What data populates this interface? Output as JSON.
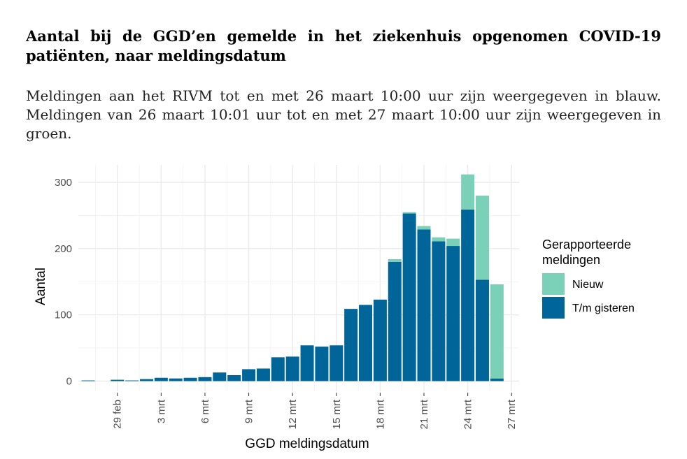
{
  "header": {
    "title": "Aantal bij de GGD’en gemelde in het ziekenhuis opgenomen COVID-19 patiënten, naar meldingsdatum",
    "subtitle": "Meldingen aan het RIVM tot en met 26 maart 10:00 uur zijn weergegeven in blauw. Meldingen van 26 maart 10:01 uur tot en met 27 maart 10:00 uur zijn weergegeven in groen."
  },
  "chart_data": {
    "type": "bar",
    "stacked": true,
    "xlabel": "GGD meldingsdatum",
    "ylabel": "Aantal",
    "ylim": [
      0,
      320
    ],
    "y_ticks": [
      0,
      100,
      200,
      300
    ],
    "x_tick_labels": [
      "29 feb",
      "3 mrt",
      "6 mrt",
      "9 mrt",
      "12 mrt",
      "15 mrt",
      "18 mrt",
      "21 mrt",
      "24 mrt",
      "27 mrt"
    ],
    "grid": true,
    "legend": {
      "title_lines": [
        "Gerapporteerde",
        "meldingen"
      ],
      "position": "right"
    },
    "categories": [
      "27 feb",
      "28 feb",
      "29 feb",
      "1 mrt",
      "2 mrt",
      "3 mrt",
      "4 mrt",
      "5 mrt",
      "6 mrt",
      "7 mrt",
      "8 mrt",
      "9 mrt",
      "10 mrt",
      "11 mrt",
      "12 mrt",
      "13 mrt",
      "14 mrt",
      "15 mrt",
      "16 mrt",
      "17 mrt",
      "18 mrt",
      "19 mrt",
      "20 mrt",
      "21 mrt",
      "22 mrt",
      "23 mrt",
      "24 mrt",
      "25 mrt",
      "26 mrt"
    ],
    "series": [
      {
        "name": "T/m gisteren",
        "color": "#006699",
        "values": [
          1,
          0,
          2,
          1,
          3,
          5,
          4,
          5,
          6,
          13,
          9,
          18,
          19,
          36,
          37,
          54,
          52,
          54,
          109,
          115,
          123,
          180,
          253,
          229,
          211,
          204,
          259,
          153,
          4
        ]
      },
      {
        "name": "Nieuw",
        "color": "#7ad1b8",
        "values": [
          0,
          0,
          0,
          0,
          0,
          0,
          0,
          0,
          0,
          0,
          0,
          0,
          0,
          0,
          0,
          0,
          0,
          0,
          0,
          0,
          0,
          4,
          2,
          5,
          6,
          11,
          53,
          127,
          142
        ]
      }
    ]
  }
}
